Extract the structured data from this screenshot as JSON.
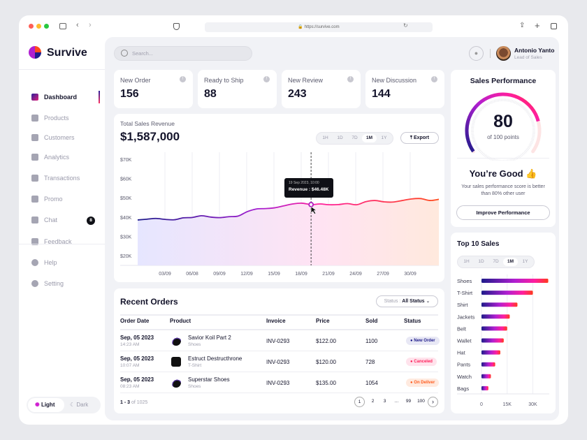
{
  "browser": {
    "url": "https://survive.com"
  },
  "brand": {
    "name": "Survive"
  },
  "sidebar": {
    "items": [
      {
        "label": "Dashboard",
        "icon": "grid-icon",
        "active": true
      },
      {
        "label": "Products",
        "icon": "box-icon"
      },
      {
        "label": "Customers",
        "icon": "users-icon"
      },
      {
        "label": "Analytics",
        "icon": "analytics-icon"
      },
      {
        "label": "Transactions",
        "icon": "receipt-icon"
      },
      {
        "label": "Promo",
        "icon": "percent-icon"
      },
      {
        "label": "Chat",
        "icon": "chat-icon",
        "badge": "8"
      },
      {
        "label": "Feedback",
        "icon": "thumbs-up-icon"
      }
    ],
    "bottom": [
      {
        "label": "Help",
        "icon": "help-icon"
      },
      {
        "label": "Setting",
        "icon": "gear-icon"
      }
    ],
    "theme": {
      "light": "Light",
      "dark": "Dark",
      "selected": "Light"
    }
  },
  "header": {
    "search_placeholder": "Search...",
    "user": {
      "name": "Antonio Yanto",
      "role": "Lead of Sales"
    }
  },
  "stats": [
    {
      "label": "New Order",
      "value": "156"
    },
    {
      "label": "Ready to Ship",
      "value": "88"
    },
    {
      "label": "New Review",
      "value": "243"
    },
    {
      "label": "New Discussion",
      "value": "144"
    }
  ],
  "revenue": {
    "title": "Total Sales Revenue",
    "total": "$1,587,000",
    "ranges": [
      "1H",
      "1D",
      "7D",
      "1M",
      "1Y"
    ],
    "selected": "1M",
    "export": "Export",
    "tooltip": {
      "date": "19 Sep 2023, 10:00",
      "label": "Revenue : $46.48K"
    }
  },
  "chart_data": [
    {
      "type": "area",
      "y_ticks": [
        "$70K",
        "$60K",
        "$50K",
        "$40K",
        "$30K",
        "$20K"
      ],
      "x_ticks": [
        "03/09",
        "06/08",
        "09/09",
        "12/09",
        "15/09",
        "18/09",
        "21/09",
        "24/09",
        "27/09",
        "30/09"
      ],
      "ylim": [
        20,
        70
      ],
      "y_unit": "K $",
      "grid": "vertical",
      "x": [
        "31/08",
        "01/09",
        "02/09",
        "03/09",
        "04/09",
        "05/09",
        "06/09",
        "07/09",
        "08/09",
        "09/09",
        "10/09",
        "11/09",
        "12/09",
        "13/09",
        "14/09",
        "15/09",
        "16/09",
        "17/09",
        "18/09",
        "19/09",
        "20/09",
        "21/09",
        "22/09",
        "23/09",
        "24/09",
        "25/09",
        "26/09",
        "27/09",
        "28/09",
        "29/09",
        "30/09",
        "01/10",
        "02/10",
        "03/10"
      ],
      "values": [
        38.5,
        38.9,
        39.3,
        38.8,
        38.6,
        39.6,
        39.8,
        40.7,
        40.0,
        39.7,
        40.2,
        40.5,
        42.8,
        44.2,
        44.4,
        44.8,
        45.8,
        46.8,
        47.2,
        46.48,
        46.8,
        46.4,
        46.5,
        47.0,
        46.4,
        48.0,
        48.6,
        47.9,
        47.8,
        48.6,
        49.4,
        49.6,
        48.6,
        49.2
      ],
      "highlight": "19/09"
    },
    {
      "type": "bar",
      "orientation": "horizontal",
      "title": "Top 10 Sales",
      "categories": [
        "Shoes",
        "T-Shirt",
        "Shirt",
        "Jackets",
        "Belt",
        "Wallet",
        "Hat",
        "Pants",
        "Watch",
        "Bags"
      ],
      "values": [
        39000,
        30000,
        21000,
        16500,
        15000,
        13000,
        11000,
        8000,
        5500,
        4000
      ],
      "x_ticks": [
        "0",
        "15K",
        "30K"
      ],
      "xlim": [
        0,
        40000
      ],
      "ranges": [
        "1H",
        "1D",
        "7D",
        "1M",
        "1Y"
      ],
      "selected": "1M"
    }
  ],
  "performance": {
    "title": "Sales Performance",
    "score": "80",
    "score_value": 80,
    "max_label": "of 100 points",
    "headline": "You’re Good 👍",
    "text": "Your sales performance score is better than 80% other user",
    "button": "Improve Performance"
  },
  "orders": {
    "title": "Recent Orders",
    "filter_label": "Status :",
    "filter_value": "All Status",
    "columns": [
      "Order Date",
      "Product",
      "Invoice",
      "Price",
      "Sold",
      "Status"
    ],
    "rows": [
      {
        "date": "Sep, 05 2023",
        "time": "14:23 AM",
        "product": "Savior Koil Part 2",
        "category": "Shoes",
        "invoice": "INV-0293",
        "price": "$122.00",
        "sold": "1100",
        "status": "New Order"
      },
      {
        "date": "Sep, 05 2023",
        "time": "10:07 AM",
        "product": "Estruct Destructhrone",
        "category": "T-Shirt",
        "invoice": "INV-0293",
        "price": "$120.00",
        "sold": "728",
        "status": "Canceled"
      },
      {
        "date": "Sep, 05 2023",
        "time": "08:23 AM",
        "product": "Superstar Shoes",
        "category": "Shoes",
        "invoice": "INV-0293",
        "price": "$135.00",
        "sold": "1054",
        "status": "On Deliver"
      }
    ],
    "range": "1 - 3",
    "total": "of 1025",
    "pages": [
      "1",
      "2",
      "3",
      "...",
      "99",
      "100"
    ]
  },
  "colors": {
    "accent_start": "#1e1b8a",
    "accent_mid": "#c21fd1",
    "accent_end": "#ff4a1c",
    "new_order": "#e8e8f5",
    "canceled": "#ffe3ec",
    "on_deliver": "#ffeadf"
  }
}
